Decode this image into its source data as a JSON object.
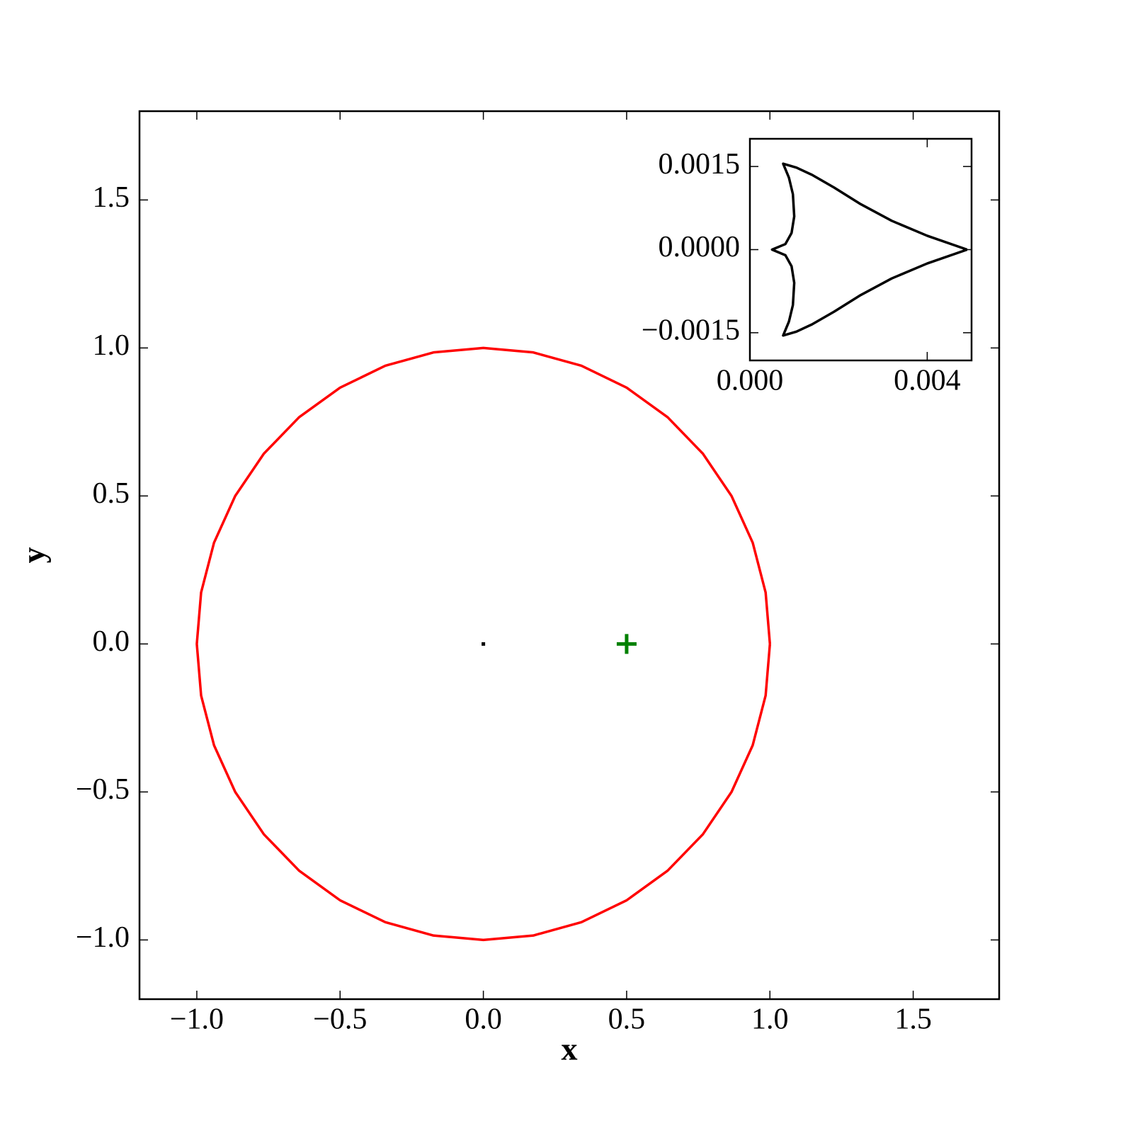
{
  "chart_data": [
    {
      "type": "line",
      "xlabel": "x",
      "ylabel": "y",
      "xlim": [
        -1.2,
        1.8
      ],
      "ylim": [
        -1.2,
        1.8
      ],
      "xticks": [
        {
          "value": -1,
          "label": "−1.0"
        },
        {
          "value": -0.5,
          "label": "−0.5"
        },
        {
          "value": 0,
          "label": "0.0"
        },
        0.5,
        {
          "value": 1,
          "label": "1.0"
        },
        1.5
      ],
      "yticks": [
        {
          "value": -1,
          "label": "−1.0"
        },
        {
          "value": -0.5,
          "label": "−0.5"
        },
        {
          "value": 0,
          "label": "0.0"
        },
        0.5,
        {
          "value": 1,
          "label": "1.0"
        },
        1.5
      ],
      "series": [
        {
          "color": "#ff0000",
          "x": [
            1,
            0.985,
            0.94,
            0.866,
            0.766,
            0.643,
            0.5,
            0.342,
            0.174,
            0,
            -0.174,
            -0.342,
            -0.5,
            -0.643,
            -0.766,
            -0.866,
            -0.94,
            -0.985,
            -1,
            -0.985,
            -0.94,
            -0.866,
            -0.766,
            -0.643,
            -0.5,
            -0.342,
            -0.174,
            0,
            0.174,
            0.342,
            0.5,
            0.643,
            0.766,
            0.866,
            0.94,
            0.985,
            1
          ],
          "y": [
            0,
            0.174,
            0.342,
            0.5,
            0.643,
            0.766,
            0.866,
            0.94,
            0.985,
            1,
            0.985,
            0.94,
            0.866,
            0.766,
            0.643,
            0.5,
            0.342,
            0.174,
            0,
            -0.174,
            -0.342,
            -0.5,
            -0.643,
            -0.766,
            -0.866,
            -0.94,
            -0.985,
            -1,
            -0.985,
            -0.94,
            -0.866,
            -0.766,
            -0.643,
            -0.5,
            -0.342,
            -0.174,
            0
          ]
        },
        {
          "color": "#008000",
          "marker": "+",
          "x": [
            0.5
          ],
          "y": [
            0
          ]
        },
        {
          "color": "#000000",
          "marker": "s",
          "x": [
            0
          ],
          "y": [
            0
          ]
        }
      ]
    },
    {
      "type": "line",
      "xlim": [
        0,
        0.005
      ],
      "ylim": [
        -0.002,
        0.002
      ],
      "xticks": [
        {
          "value": 0,
          "label": "0.000"
        },
        {
          "value": 0.004,
          "label": "0.004"
        }
      ],
      "yticks": [
        {
          "value": -0.0015,
          "label": "−0.0015"
        },
        {
          "value": 0,
          "label": "0.0000"
        },
        0.0015
      ],
      "series": [
        {
          "color": "#000000",
          "x": [
            0.0049,
            0.004,
            0.0032,
            0.0025,
            0.0019,
            0.0014,
            0.00105,
            0.00075,
            0.00088,
            0.00097,
            0.001,
            0.00094,
            0.0008,
            0.0005,
            0.0008,
            0.00094,
            0.001,
            0.00097,
            0.00088,
            0.00075,
            0.00105,
            0.0014,
            0.0019,
            0.0025,
            0.0032,
            0.004,
            0.0049
          ],
          "y": [
            0,
            0.00025,
            0.00052,
            0.00082,
            0.00112,
            0.00135,
            0.00148,
            0.00155,
            0.0013,
            0.001,
            0.0006,
            0.0003,
            0.0001,
            0,
            -0.0001,
            -0.0003,
            -0.0006,
            -0.001,
            -0.0013,
            -0.00155,
            -0.00148,
            -0.00135,
            -0.00112,
            -0.00082,
            -0.00052,
            -0.00025,
            0
          ]
        }
      ]
    }
  ]
}
